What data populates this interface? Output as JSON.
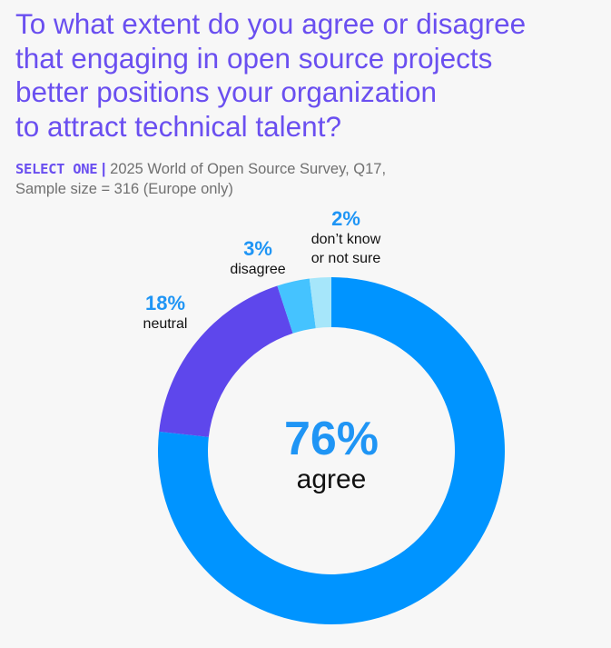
{
  "title": "To what extent do you agree or disagree that engaging in open source projects better positions your organization to attract technical talent?",
  "title_lines": [
    "To what extent do you agree or disagree",
    "that engaging in open source projects",
    "better positions your organization",
    "to attract technical talent?"
  ],
  "subtitle": {
    "select": "SELECT ONE",
    "separator": "|",
    "source": "2025 World of Open Source Survey, Q17,",
    "sample": "Sample size = 316 (Europe only)"
  },
  "chart_data": {
    "type": "pie",
    "variant": "donut",
    "direction": "clockwise from top",
    "categories": [
      "agree",
      "neutral",
      "disagree",
      "don’t know or not sure"
    ],
    "values": [
      76,
      18,
      3,
      2
    ],
    "labels": [
      "76%",
      "18%",
      "3%",
      "2%"
    ],
    "label_lines": [
      [
        "agree"
      ],
      [
        "neutral"
      ],
      [
        "disagree"
      ],
      [
        "don’t know",
        "or not sure"
      ]
    ],
    "colors": [
      "#0094ff",
      "#5e47ec",
      "#45c3ff",
      "#a6e6fa"
    ],
    "unit": "%"
  }
}
